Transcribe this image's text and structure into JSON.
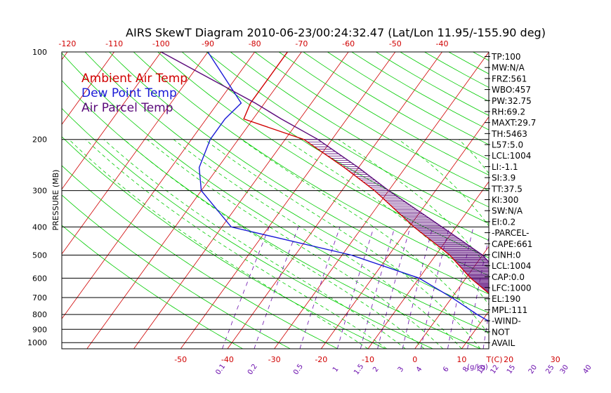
{
  "title": "AIRS SkewT Diagram 2010-06-23/00:24:32.47 (Lat/Lon 11.95/-155.90 deg)",
  "colors": {
    "ambient": "#d00000",
    "dewpoint": "#1a1ad6",
    "parcel": "#5a0a7a",
    "isotherm": "#d00000",
    "dry_adiabat": "#00cc00",
    "moist_adiabat": "#00cc00",
    "mixing_ratio": "#6a0dad",
    "isobar": "#000000"
  },
  "legend": [
    {
      "label": "Ambient Air Temp",
      "color": "#d00000"
    },
    {
      "label": "Dew Point Temp",
      "color": "#1a1ad6"
    },
    {
      "label": "Air Parcel Temp",
      "color": "#5a0a7a"
    }
  ],
  "indices": [
    "TP:100",
    "MW:N/A",
    "FRZ:561",
    "WBO:457",
    "PW:32.75",
    "RH:69.2",
    "MAXT:29.7",
    "TH:5463",
    "L57:5.0",
    "LCL:1004",
    "LI:-1.1",
    "SI:3.9",
    "TT:37.5",
    "KI:300",
    "SW:N/A",
    "EI:0.2",
    "-PARCEL-",
    "CAPE:661",
    "CINH:0",
    "LCL:1004",
    "CAP:0.0",
    "LFC:1000",
    "EL:190",
    "MPL:111",
    "-WIND-",
    "NOT",
    "AVAIL"
  ],
  "chart_data": {
    "type": "line",
    "title": "AIRS SkewT Diagram 2010-06-23/00:24:32.47 (Lat/Lon 11.95/-155.90 deg)",
    "ylabel": "PRESSURE (MB)",
    "xlabel_bottom_unit": "T(C)",
    "mixing_ratio_unit": "(g/kg)",
    "y_log_scale": true,
    "ylim": [
      1050,
      100
    ],
    "pressure_ticks": [
      100,
      200,
      300,
      400,
      500,
      600,
      700,
      800,
      900,
      1000
    ],
    "bottom_temp_ticks": [
      -50,
      -40,
      -30,
      -20,
      -10,
      0,
      10,
      20,
      30
    ],
    "top_temp_ticks": [
      -120,
      -110,
      -100,
      -90,
      -80,
      -70,
      -60,
      -50,
      -40
    ],
    "mixing_ratio_ticks": [
      "0.1",
      "0.2",
      "0.5",
      "1",
      "1.5",
      "2",
      "3",
      "4",
      "6",
      "8",
      "10",
      "12",
      "15",
      "20",
      "25",
      "30",
      "40"
    ],
    "series": [
      {
        "name": "Ambient Air Temp",
        "pressure": [
          1000,
          950,
          900,
          850,
          800,
          700,
          600,
          500,
          400,
          300,
          250,
          200,
          170,
          150,
          100
        ],
        "temperature": [
          27,
          24,
          21,
          18,
          15,
          9,
          1,
          -7,
          -19,
          -33,
          -43,
          -56,
          -72,
          -73,
          -73
        ]
      },
      {
        "name": "Dew Point Temp",
        "pressure": [
          1000,
          950,
          900,
          850,
          800,
          700,
          600,
          500,
          400,
          300,
          250,
          200,
          170,
          150,
          100
        ],
        "temperature": [
          24,
          19,
          16,
          12,
          8,
          0,
          -10,
          -28,
          -58,
          -70,
          -74,
          -76,
          -76,
          -75,
          -90
        ]
      },
      {
        "name": "Air Parcel Temp",
        "pressure": [
          1000,
          950,
          900,
          850,
          800,
          700,
          600,
          500,
          400,
          300,
          250,
          200,
          170,
          150,
          100
        ],
        "temperature": [
          27,
          25,
          23,
          21,
          19,
          14,
          8,
          0,
          -13,
          -30,
          -40,
          -53,
          -64,
          -72,
          -100
        ]
      }
    ]
  }
}
